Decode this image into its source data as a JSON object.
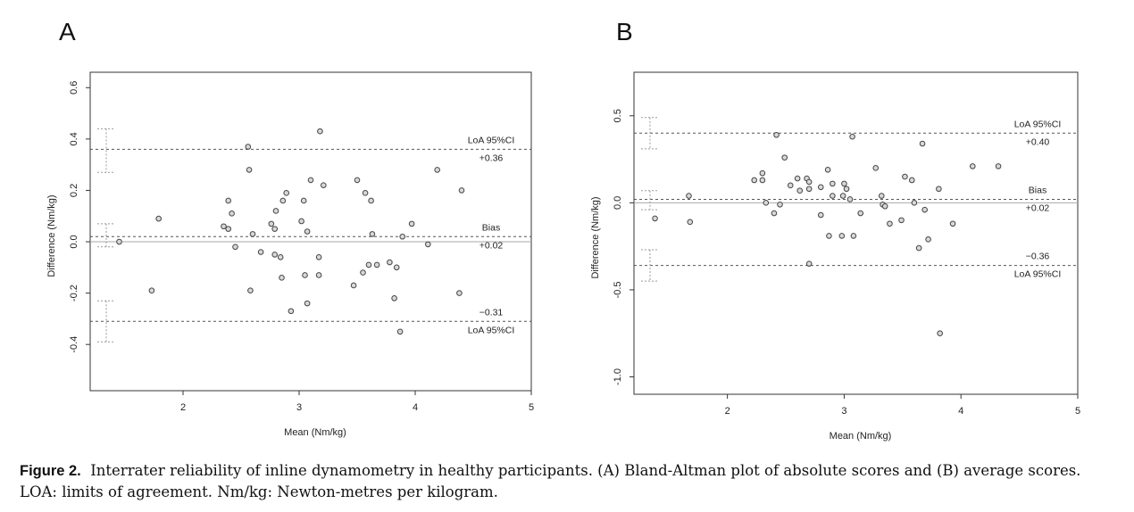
{
  "panels": [
    {
      "label": "A"
    },
    {
      "label": "B"
    }
  ],
  "caption": {
    "prefix": "Figure 2.",
    "text": "Interrater reliability of inline dynamometry in healthy participants. (A) Bland-Altman plot of absolute scores and (B) average scores. LOA: limits of agreement. Nm/kg: Newton-metres per kilogram."
  },
  "chart_data": [
    {
      "type": "scatter",
      "panel": "A",
      "title": "",
      "xlabel": "Mean (Nm/kg)",
      "ylabel": "Difference (Nm/kg)",
      "xlim": [
        1.2,
        5.0
      ],
      "ylim": [
        -0.58,
        0.66
      ],
      "xticks": [
        2,
        3,
        4,
        5
      ],
      "yticks": [
        -0.4,
        -0.2,
        0.0,
        0.2,
        0.4,
        0.6
      ],
      "ytick_labels": [
        "-0.4",
        "-0.2",
        "0.0",
        "0.2",
        "0.4",
        "0.6"
      ],
      "zero_line": 0,
      "reference_lines": [
        {
          "name": "upper_loa",
          "y": 0.36,
          "style": "dashed",
          "value_label": "+0.36",
          "text_label": "LoA 95%CI",
          "text_position": "above",
          "ci": [
            0.27,
            0.44
          ]
        },
        {
          "name": "bias",
          "y": 0.02,
          "style": "dashed",
          "value_label": "+0.02",
          "text_label": "Bias",
          "text_position": "above",
          "ci": [
            -0.02,
            0.07
          ]
        },
        {
          "name": "lower_loa",
          "y": -0.31,
          "style": "dashed",
          "value_label": "−0.31",
          "text_label": "LoA 95%CI",
          "text_position": "below",
          "ci": [
            -0.39,
            -0.23
          ]
        }
      ],
      "points": [
        [
          1.45,
          0.0
        ],
        [
          1.73,
          -0.19
        ],
        [
          1.79,
          0.09
        ],
        [
          2.35,
          0.06
        ],
        [
          2.39,
          0.16
        ],
        [
          2.39,
          0.05
        ],
        [
          2.42,
          0.11
        ],
        [
          2.45,
          -0.02
        ],
        [
          2.56,
          0.37
        ],
        [
          2.57,
          0.28
        ],
        [
          2.58,
          -0.19
        ],
        [
          2.6,
          0.03
        ],
        [
          2.67,
          -0.04
        ],
        [
          2.76,
          0.07
        ],
        [
          2.79,
          0.05
        ],
        [
          2.79,
          -0.05
        ],
        [
          2.8,
          0.12
        ],
        [
          2.84,
          -0.06
        ],
        [
          2.85,
          -0.14
        ],
        [
          2.86,
          0.16
        ],
        [
          2.89,
          0.19
        ],
        [
          2.93,
          -0.27
        ],
        [
          3.02,
          0.08
        ],
        [
          3.04,
          0.16
        ],
        [
          3.05,
          -0.13
        ],
        [
          3.07,
          0.04
        ],
        [
          3.07,
          -0.24
        ],
        [
          3.1,
          0.24
        ],
        [
          3.17,
          -0.06
        ],
        [
          3.17,
          -0.13
        ],
        [
          3.18,
          0.43
        ],
        [
          3.21,
          0.22
        ],
        [
          3.47,
          -0.17
        ],
        [
          3.5,
          0.24
        ],
        [
          3.55,
          -0.12
        ],
        [
          3.57,
          0.19
        ],
        [
          3.6,
          -0.09
        ],
        [
          3.62,
          0.16
        ],
        [
          3.63,
          0.03
        ],
        [
          3.67,
          -0.09
        ],
        [
          3.78,
          -0.08
        ],
        [
          3.82,
          -0.22
        ],
        [
          3.84,
          -0.1
        ],
        [
          3.87,
          -0.35
        ],
        [
          3.89,
          0.02
        ],
        [
          3.97,
          0.07
        ],
        [
          4.11,
          -0.01
        ],
        [
          4.19,
          0.28
        ],
        [
          4.38,
          -0.2
        ],
        [
          4.4,
          0.2
        ]
      ]
    },
    {
      "type": "scatter",
      "panel": "B",
      "title": "",
      "xlabel": "Mean (Nm/kg)",
      "ylabel": "Difference (Nm/kg)",
      "xlim": [
        1.2,
        5.0
      ],
      "ylim": [
        -1.1,
        0.75
      ],
      "xticks": [
        2,
        3,
        4,
        5
      ],
      "yticks": [
        -1.0,
        -0.5,
        0.0,
        0.5
      ],
      "ytick_labels": [
        "-1.0",
        "-0.5",
        "0.0",
        "0.5"
      ],
      "zero_line": 0,
      "reference_lines": [
        {
          "name": "upper_loa",
          "y": 0.4,
          "style": "dashed",
          "value_label": "+0.40",
          "text_label": "LoA 95%CI",
          "text_position": "above",
          "ci": [
            0.31,
            0.49
          ]
        },
        {
          "name": "bias",
          "y": 0.02,
          "style": "dashed",
          "value_label": "+0.02",
          "text_label": "Bias",
          "text_position": "above",
          "ci": [
            -0.04,
            0.07
          ]
        },
        {
          "name": "lower_loa",
          "y": -0.36,
          "style": "dashed",
          "value_label": "−0.36",
          "text_label": "LoA 95%CI",
          "text_position": "below",
          "ci": [
            -0.45,
            -0.27
          ]
        }
      ],
      "points": [
        [
          1.38,
          -0.09
        ],
        [
          1.67,
          0.04
        ],
        [
          1.68,
          -0.11
        ],
        [
          2.23,
          0.13
        ],
        [
          2.3,
          0.17
        ],
        [
          2.3,
          0.13
        ],
        [
          2.33,
          0.0
        ],
        [
          2.4,
          -0.06
        ],
        [
          2.42,
          0.39
        ],
        [
          2.45,
          -0.01
        ],
        [
          2.49,
          0.26
        ],
        [
          2.54,
          0.1
        ],
        [
          2.6,
          0.14
        ],
        [
          2.62,
          0.07
        ],
        [
          2.68,
          0.14
        ],
        [
          2.7,
          0.08
        ],
        [
          2.7,
          0.12
        ],
        [
          2.7,
          -0.35
        ],
        [
          2.8,
          -0.07
        ],
        [
          2.8,
          0.09
        ],
        [
          2.86,
          0.19
        ],
        [
          2.87,
          -0.19
        ],
        [
          2.9,
          0.04
        ],
        [
          2.9,
          0.11
        ],
        [
          2.98,
          -0.19
        ],
        [
          2.99,
          0.04
        ],
        [
          3.0,
          0.11
        ],
        [
          3.02,
          0.08
        ],
        [
          3.05,
          0.02
        ],
        [
          3.07,
          0.38
        ],
        [
          3.08,
          -0.19
        ],
        [
          3.14,
          -0.06
        ],
        [
          3.27,
          0.2
        ],
        [
          3.32,
          0.04
        ],
        [
          3.33,
          -0.01
        ],
        [
          3.35,
          -0.02
        ],
        [
          3.39,
          -0.12
        ],
        [
          3.49,
          -0.1
        ],
        [
          3.52,
          0.15
        ],
        [
          3.58,
          0.13
        ],
        [
          3.6,
          0.0
        ],
        [
          3.64,
          -0.26
        ],
        [
          3.67,
          0.34
        ],
        [
          3.69,
          -0.04
        ],
        [
          3.72,
          -0.21
        ],
        [
          3.81,
          0.08
        ],
        [
          3.82,
          -0.75
        ],
        [
          3.93,
          -0.12
        ],
        [
          4.1,
          0.21
        ],
        [
          4.32,
          0.21
        ]
      ]
    }
  ]
}
